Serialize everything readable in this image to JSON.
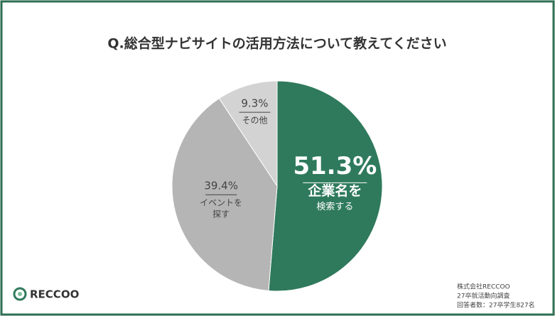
{
  "chart_data": {
    "type": "pie",
    "title": "Q.総合型ナビサイトの活用方法について教えてください",
    "categories": [
      [
        "企業名を",
        "検索する"
      ],
      [
        "イベントを",
        "探す"
      ],
      [
        "その他"
      ]
    ],
    "values": [
      51.3,
      39.4,
      9.3
    ],
    "value_labels": [
      "51.3%",
      "39.4%",
      "9.3%"
    ],
    "colors": [
      "#2f7a5c",
      "#b5b5b5",
      "#d3d3d3"
    ],
    "logo": "RECCOO",
    "notes": [
      "株式会社RECCOO",
      "27卒就活動向調査",
      "回答者数：27卒学生827名"
    ]
  }
}
